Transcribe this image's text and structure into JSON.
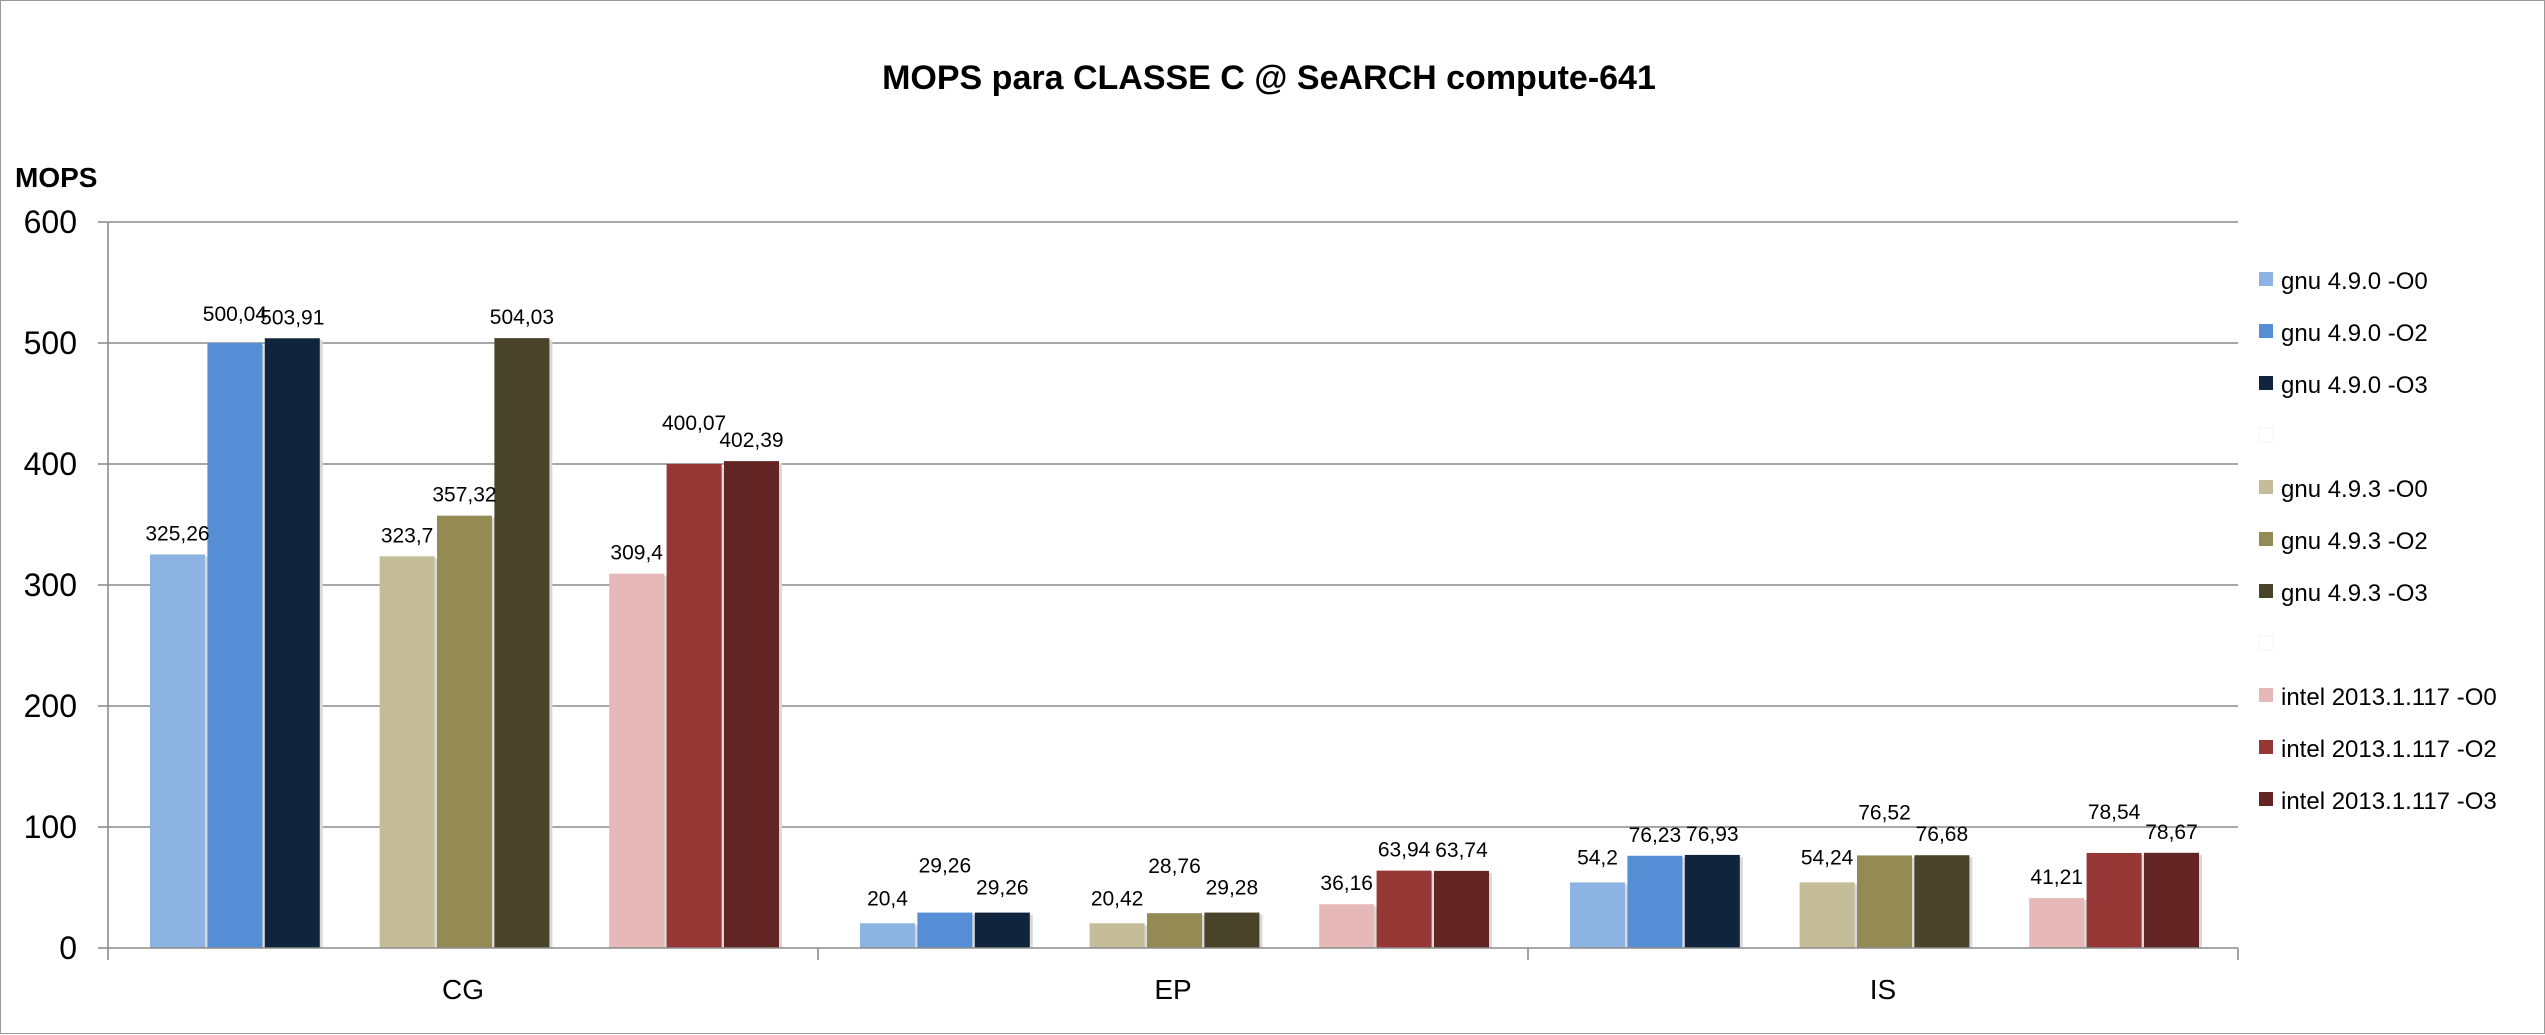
{
  "chart_data": {
    "type": "bar",
    "title": "MOPS para CLASSE C @ SeARCH compute-641",
    "ylabel": "MOPS",
    "xlabel": "",
    "ylim": [
      0,
      600
    ],
    "yticks": [
      0,
      100,
      200,
      300,
      400,
      500,
      600
    ],
    "grid": true,
    "legend_position": "right",
    "categories": [
      "CG",
      "EP",
      "IS"
    ],
    "series": [
      {
        "name": "gnu 4.9.0 -O0",
        "color": "#8db3e2",
        "values": [
          325.26,
          20.4,
          54.2
        ],
        "labels": [
          "325,26",
          "20,4",
          "54,2"
        ]
      },
      {
        "name": "gnu 4.9.0 -O2",
        "color": "#558ed5",
        "values": [
          500.04,
          29.26,
          76.23
        ],
        "labels": [
          "500,04",
          "29,26",
          "76,23"
        ]
      },
      {
        "name": "gnu 4.9.0 -O3",
        "color": "#10243e",
        "values": [
          503.91,
          29.26,
          76.93
        ],
        "labels": [
          "503,91",
          "29,26",
          "76,93"
        ]
      },
      {
        "name": "",
        "color": "#ffffff",
        "values": [
          0,
          0,
          0
        ],
        "labels": [
          "",
          "",
          ""
        ],
        "spacer": true
      },
      {
        "name": "gnu 4.9.3 -O0",
        "color": "#c4bd97",
        "values": [
          323.7,
          20.42,
          54.24
        ],
        "labels": [
          "323,7",
          "20,42",
          "54,24"
        ]
      },
      {
        "name": "gnu 4.9.3 -O2",
        "color": "#948a54",
        "values": [
          357.32,
          28.76,
          76.52
        ],
        "labels": [
          "357,32",
          "28,76",
          "76,52"
        ]
      },
      {
        "name": "gnu 4.9.3 -O3",
        "color": "#494429",
        "values": [
          504.03,
          29.28,
          76.68
        ],
        "labels": [
          "504,03",
          "29,28",
          "76,68"
        ]
      },
      {
        "name": "",
        "color": "#ffffff",
        "values": [
          0,
          0,
          0
        ],
        "labels": [
          "",
          "",
          ""
        ],
        "spacer": true
      },
      {
        "name": "intel 2013.1.117 -O0",
        "color": "#e6b9b8",
        "values": [
          309.4,
          36.16,
          41.21
        ],
        "labels": [
          "309,4",
          "36,16",
          "41,21"
        ]
      },
      {
        "name": "intel 2013.1.117 -O2",
        "color": "#953735",
        "values": [
          400.07,
          63.94,
          78.54
        ],
        "labels": [
          "400,07",
          "63,94",
          "78,54"
        ]
      },
      {
        "name": "intel 2013.1.117 -O3",
        "color": "#632523",
        "values": [
          402.39,
          63.74,
          78.67
        ],
        "labels": [
          "402,39",
          "63,74",
          "78,67"
        ]
      }
    ]
  }
}
